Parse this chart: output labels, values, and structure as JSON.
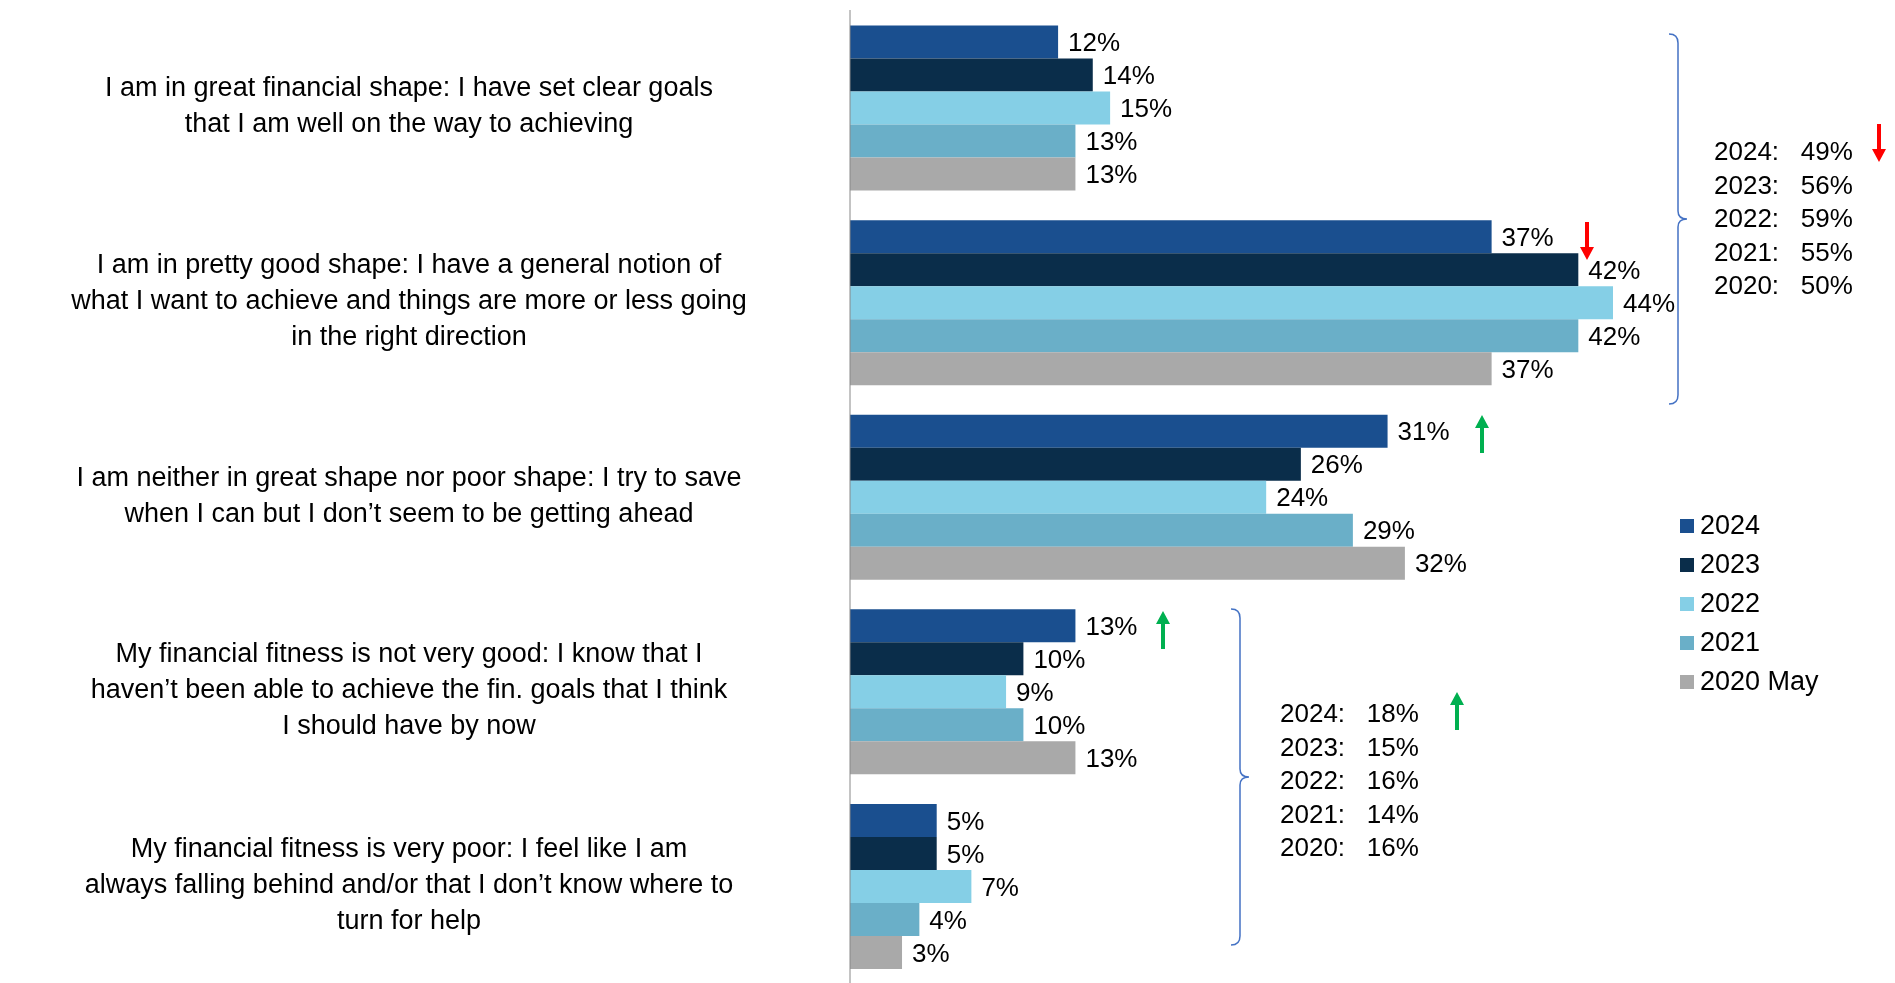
{
  "chart_data": {
    "type": "bar",
    "orientation": "horizontal",
    "categories": [
      "I am in great financial shape: I have set clear goals that I am well on the way to achieving",
      "I am in pretty good shape: I have a general notion of what I want to achieve and things are more or less going in the right direction",
      "I am neither in great shape nor poor shape: I try to save when I can but I don’t seem to be getting ahead",
      "My financial fitness is not very good: I know that I haven’t been able to achieve the fin. goals that I think I should have by now",
      "My financial fitness is very poor: I feel like I am always falling behind and/or that I don’t know where to turn for help"
    ],
    "series": [
      {
        "name": "2024",
        "color": "#1a4f8f",
        "values": [
          12,
          37,
          31,
          13,
          5
        ],
        "value_labels": [
          "12%",
          "37%",
          "31%",
          "13%",
          "5%"
        ]
      },
      {
        "name": "2023",
        "color": "#0a2d4a",
        "values": [
          14,
          42,
          26,
          10,
          5
        ],
        "value_labels": [
          "14%",
          "42%",
          "26%",
          "10%",
          "5%"
        ]
      },
      {
        "name": "2022",
        "color": "#85cfe6",
        "values": [
          15,
          44,
          24,
          9,
          7
        ],
        "value_labels": [
          "15%",
          "44%",
          "24%",
          "9%",
          "7%"
        ]
      },
      {
        "name": "2021",
        "color": "#6aafc8",
        "values": [
          13,
          42,
          29,
          10,
          4
        ],
        "value_labels": [
          "13%",
          "42%",
          "29%",
          "10%",
          "4%"
        ]
      },
      {
        "name": "2020 May",
        "color": "#a9a9a9",
        "values": [
          13,
          37,
          32,
          13,
          3
        ],
        "value_labels": [
          "13%",
          "37%",
          "32%",
          "13%",
          "3%"
        ]
      }
    ],
    "tick_labels": "y",
    "legend": "right",
    "annotations": [
      "2024:   49%",
      "2023:   56%",
      "2022:   59%",
      "2021:   55%",
      "2020:   50%",
      "2024:   18%",
      "2023:   15%",
      "2022:   16%",
      "2021:   14%",
      "2020:   16%"
    ]
  }
}
